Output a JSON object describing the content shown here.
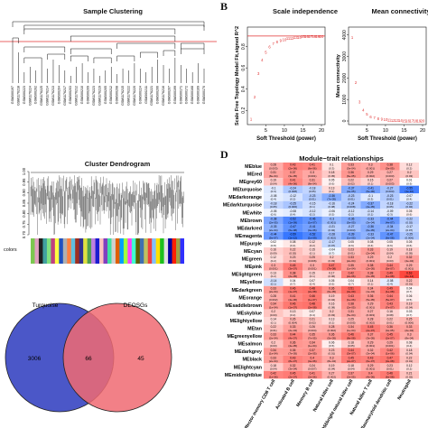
{
  "panelA": {
    "title": "Sample Clustering",
    "sample_labels": [
      "GSM300197",
      "GSM1176218",
      "GSM300223",
      "GSM1176224",
      "GSM300202",
      "GSM1176225",
      "GSM1176214",
      "GSM1176213",
      "GSM300204",
      "GSM1176217",
      "GSM300203",
      "GSM1176212",
      "GSM300210",
      "GSM300209",
      "GSM1176223",
      "GSM1176219",
      "GSM300205",
      "GSM300212",
      "GSM300208",
      "GSM1176215",
      "GSM1176222",
      "GSM1176220",
      "GSM300224",
      "GSM300211",
      "GSM1176221",
      "GSM300206",
      "GSM1176216",
      "GSM300207",
      "GSM300199",
      "GSM300171",
      "GSM300172",
      "GSM300168",
      "GSM300169",
      "GSM300170"
    ],
    "cut_line_color": "#e03030"
  },
  "panelB": {
    "letter": "B",
    "left": {
      "title": "Scale independence",
      "ylabel": "Scale Free Topology Model Fit,signed R^2",
      "xlabel": "Soft Threshold (power)",
      "xticks": [
        "5",
        "10",
        "15",
        "20"
      ],
      "yticks": [
        "0.2",
        "0.4",
        "0.6",
        "0.8"
      ],
      "powers": [
        1,
        2,
        3,
        4,
        5,
        6,
        7,
        8,
        9,
        10,
        11,
        12,
        13,
        14,
        15,
        16,
        17,
        18,
        19,
        20
      ],
      "r2": [
        0.12,
        0.33,
        0.55,
        0.68,
        0.75,
        0.8,
        0.83,
        0.85,
        0.86,
        0.87,
        0.88,
        0.88,
        0.89,
        0.89,
        0.9,
        0.9,
        0.9,
        0.9,
        0.9,
        0.9
      ],
      "cutoff": 0.9
    },
    "right": {
      "title": "Mean connectivity",
      "ylabel": "Mean connectivity",
      "xlabel": "Soft Threshold (power)",
      "xticks": [
        "5",
        "10",
        "15",
        "20"
      ],
      "yticks": [
        "0",
        "1000",
        "2000",
        "3000",
        "4000"
      ],
      "powers": [
        1,
        2,
        3,
        4,
        5,
        6,
        7,
        8,
        9,
        10,
        11,
        12,
        13,
        14,
        15,
        16,
        17,
        18,
        19,
        20
      ],
      "connectivity": [
        3900,
        1800,
        900,
        520,
        330,
        220,
        160,
        120,
        95,
        75,
        60,
        50,
        42,
        36,
        31,
        27,
        24,
        21,
        19,
        17
      ]
    }
  },
  "panelC": {
    "title": "Cluster Dendrogram",
    "yticks": [
      "1.00",
      "0.95",
      "0.90",
      "0.85",
      "0.80",
      "0.75",
      "0.70"
    ],
    "colors_label": "colors",
    "color_bar": [
      "#7cc850",
      "#e0a0c0",
      "#202020",
      "#40a0a0",
      "#80e080",
      "#c04080",
      "#ffff40",
      "#2050c0",
      "#b0b0b0",
      "#ff8040",
      "#60c0e0",
      "#a03020",
      "#303090",
      "#e0e040",
      "#50a050",
      "#c080e0",
      "#1c1cd0",
      "#ffc0c0",
      "#8040c0",
      "#40e0a0",
      "#d0d0d0",
      "#e06000",
      "#00a0ff",
      "#a0ff40",
      "#ff40ff",
      "#40ffd0",
      "#606000",
      "#4070b0",
      "#c0c060",
      "#f04040",
      "#80c0ff",
      "#ffe000",
      "#1cc01c",
      "#e0e0e0",
      "#0000a0",
      "#ff2000",
      "#a0a040",
      "#3030ff"
    ]
  },
  "venn": {
    "left_label": "Turquoise",
    "right_label": "DEOSGs",
    "left_only": "3006",
    "both": "66",
    "right_only": "45",
    "left_color": "#4b57c8",
    "right_color": "#f06a72"
  },
  "panelD": {
    "letter": "D",
    "title": "Module−trait relationships",
    "modules": [
      "MEblue",
      "MEred",
      "MEgrey60",
      "MEturquoise",
      "MEdarkorange",
      "MEdarkturquoise",
      "MEwhite",
      "MEbrown",
      "MEdarkred",
      "MEmagenta",
      "MEpurple",
      "MEcyan",
      "MEgreen",
      "MEpink",
      "MElightgreen",
      "MEyellow",
      "MEdarkgreen",
      "MEorange",
      "MEsaddlebrown",
      "MEskyblue",
      "MElightyellow",
      "MEtan",
      "MEgreenyellow",
      "MEsalmon",
      "MEdarkgrey",
      "MEblack",
      "MElightcyan",
      "MEmidnightblue"
    ],
    "traits": [
      "Effector memory CD8 T cell",
      "Activated B cell",
      "Memory B cell",
      "Natural killer cell",
      "CD56bright natural killer cell",
      "Natural killer T cell",
      "Plasmacytoid dendritic cell",
      "Neutrophil"
    ],
    "values": [
      [
        0.28,
        0.43,
        0.41,
        0.1,
        0.33,
        0.3,
        0.38,
        0.12
      ],
      [
        0.31,
        0.37,
        0.3,
        0.18,
        0.36,
        0.29,
        0.27,
        0.2
      ],
      [
        0.19,
        0.41,
        0.31,
        0.05,
        0.22,
        0.15,
        0.27,
        0.01
      ],
      [
        -0.1,
        -0.24,
        -0.18,
        0.13,
        -0.37,
        -0.41,
        -0.27,
        -0.55
      ],
      [
        -0.08,
        -0.12,
        -0.23,
        -0.36,
        -0.23,
        -0.1,
        -0.23,
        -0.07
      ],
      [
        -0.18,
        -0.25,
        -0.15,
        -0.16,
        -0.24,
        -0.37,
        -0.18,
        -0.22
      ],
      [
        -0.05,
        -0.08,
        -0.12,
        -0.06,
        -0.12,
        -0.14,
        -0.09,
        0.05
      ],
      [
        -0.38,
        -0.52,
        -0.46,
        -0.3,
        -0.36,
        -0.33,
        -0.44,
        -0.22
      ],
      [
        -0.33,
        -0.47,
        -0.41,
        -0.21,
        -0.27,
        -0.36,
        -0.34,
        -0.17
      ],
      [
        -0.44,
        -0.59,
        -0.52,
        -0.28,
        -0.39,
        -0.33,
        -0.47,
        -0.25
      ],
      [
        0.02,
        0.08,
        0.12,
        -0.17,
        0.05,
        0.08,
        0.05,
        0.05
      ],
      [
        0.16,
        0.22,
        0.15,
        -0.04,
        0.23,
        0.33,
        0.19,
        0.18
      ],
      [
        0.12,
        0.23,
        0.25,
        0.2,
        0.33,
        0.29,
        0.2,
        0.32
      ],
      [
        0.3,
        0.45,
        0.3,
        0.47,
        0.35,
        0.38,
        0.44,
        0.29
      ],
      [
        0.13,
        0.38,
        0.15,
        0.17,
        0.42,
        0.38,
        0.49,
        0.63
      ],
      [
        -0.14,
        0.04,
        0.07,
        0.05,
        0.04,
        0.14,
        -0.08,
        0.22
      ],
      [
        0.33,
        0.46,
        0.48,
        0.36,
        0.51,
        0.34,
        0.49,
        0.04
      ],
      [
        0.28,
        0.41,
        0.46,
        0.19,
        0.43,
        0.36,
        0.44,
        0.06
      ],
      [
        0.34,
        0.46,
        0.48,
        0.16,
        0.38,
        0.29,
        0.43,
        0.19
      ],
      [
        0.2,
        0.13,
        0.07,
        0.2,
        0.31,
        0.27,
        0.16,
        0.03
      ],
      [
        0.14,
        0.26,
        0.21,
        0.13,
        0.25,
        0.28,
        0.22,
        0.25
      ],
      [
        0.22,
        0.33,
        0.26,
        0.28,
        0.34,
        0.45,
        0.36,
        0.33
      ],
      [
        0.33,
        0.44,
        0.35,
        0.36,
        0.46,
        0.37,
        0.45,
        0.3
      ],
      [
        0.2,
        0.36,
        0.34,
        0.06,
        0.18,
        0.29,
        0.29,
        0.08
      ],
      [
        0.34,
        0.35,
        0.37,
        0.23,
        0.44,
        0.32,
        0.42,
        0.18
      ],
      [
        0.33,
        0.43,
        0.4,
        0.3,
        0.45,
        0.43,
        0.47,
        0.22
      ],
      [
        0.18,
        0.32,
        0.24,
        0.19,
        0.18,
        0.29,
        0.23,
        0.12
      ],
      [
        0.42,
        0.45,
        0.41,
        0.27,
        0.37,
        0.4,
        0.46,
        0.21
      ]
    ],
    "pvalues": [
      [
        "(0.003)",
        "(2e-06)",
        "(6e-06)",
        "(0.3)",
        "(3e-04)",
        "(0.001)",
        "(3e-05)",
        "(0.2)"
      ],
      [
        "(8e-04)",
        "(3e-05)",
        "(0.001)",
        "(0.05)",
        "(6e-05)",
        "(0.002)",
        "(0.003)",
        "(0.03)"
      ],
      [
        "(0.04)",
        "(4e-06)",
        "(8e-04)",
        "(0.6)",
        "(0.02)",
        "(0.1)",
        "(0.003)",
        "(0.9)"
      ],
      [
        "(0.3)",
        "(0.008)",
        "(0.05)",
        "(0.2)",
        "(4e-05)",
        "(5e-06)",
        "(0.003)",
        "(1e-10)"
      ],
      [
        "(0.4)",
        "(0.2)",
        "(0.01)",
        "(7e-05)",
        "(0.01)",
        "(0.3)",
        "(0.01)",
        "(0.4)"
      ],
      [
        "(0.05)",
        "(0.006)",
        "(0.1)",
        "(0.08)",
        "(0.008)",
        "(4e-05)",
        "(0.05)",
        "(0.02)"
      ],
      [
        "(0.6)",
        "(0.4)",
        "(0.2)",
        "(0.5)",
        "(0.2)",
        "(0.1)",
        "(0.3)",
        "(0.6)"
      ],
      [
        "(2e-05)",
        "(1e-09)",
        "(1e-07)",
        "(0.001)",
        "(5e-05)",
        "(3e-04)",
        "(4e-07)",
        "(0.02)"
      ],
      [
        "(2e-04)",
        "(6e-08)",
        "(4e-06)",
        "(0.02)",
        "(0.003)",
        "(6e-05)",
        "(2e-04)",
        "(0.07)"
      ],
      [
        "(5e-07)",
        "(1e-12)",
        "(1e-09)",
        "(0.002)",
        "(1e-05)",
        "(2e-04)",
        "(6e-08)",
        "(0.006)"
      ],
      [
        "(0.8)",
        "(0.4)",
        "(0.2)",
        "(0.07)",
        "(0.6)",
        "(0.4)",
        "(0.6)",
        "(0.6)"
      ],
      [
        "(0.09)",
        "(0.02)",
        "(0.1)",
        "(0.7)",
        "(0.01)",
        "(2e-04)",
        "(0.04)",
        "(0.05)"
      ],
      [
        "(0.2)",
        "(0.01)",
        "(0.006)",
        "(0.03)",
        "(2e-04)",
        "(0.001)",
        "(0.03)",
        "(4e-04)"
      ],
      [
        "(0.001)",
        "(3e-07)",
        "(0.001)",
        "(7e-08)",
        "(1e-04)",
        "(2e-05)",
        "(5e-07)",
        "(0.001)"
      ],
      [
        "(0.2)",
        "(2e-05)",
        "(0.1)",
        "(0.06)",
        "(2e-06)",
        "(2e-05)",
        "(1e-08)",
        "(2e-14)"
      ],
      [
        "(0.1)",
        "(0.7)",
        "(0.4)",
        "(0.6)",
        "(0.7)",
        "(0.1)",
        "(0.4)",
        "(0.01)"
      ],
      [
        "(2e-04)",
        "(1e-07)",
        "(2e-08)",
        "(6e-05)",
        "(3e-09)",
        "(1e-04)",
        "(1e-08)",
        "(0.7)"
      ],
      [
        "(0.002)",
        "(4e-06)",
        "(1e-07)",
        "(0.04)",
        "(1e-06)",
        "(5e-05)",
        "(5e-07)",
        "(0.5)"
      ],
      [
        "(1e-04)",
        "(1e-07)",
        "(2e-08)",
        "(0.08)",
        "(2e-05)",
        "(0.001)",
        "(7e-07)",
        "(0.04)"
      ],
      [
        "(0.03)",
        "(0.2)",
        "(0.4)",
        "(0.03)",
        "(5e-04)",
        "(0.003)",
        "(0.08)",
        "(0.7)"
      ],
      [
        "(0.1)",
        "(0.004)",
        "(0.02)",
        "(0.2)",
        "(0.005)",
        "(0.002)",
        "(0.01)",
        "(0.006)"
      ],
      [
        "(0.01)",
        "(2e-04)",
        "(0.004)",
        "(0.002)",
        "(1e-04)",
        "(2e-07)",
        "(4e-05)",
        "(2e-04)"
      ],
      [
        "(2e-04)",
        "(4e-07)",
        "(7e-05)",
        "(5e-05)",
        "(8e-08)",
        "(3e-05)",
        "(2e-07)",
        "(8e-04)"
      ],
      [
        "(0.03)",
        "(4e-05)",
        "(1e-04)",
        "(0.5)",
        "(0.05)",
        "(0.001)",
        "(0.001)",
        "(0.4)"
      ],
      [
        "(1e-04)",
        "(7e-05)",
        "(2e-05)",
        "(0.01)",
        "(3e-07)",
        "(3e-04)",
        "(1e-06)",
        "(0.04)"
      ],
      [
        "(2e-04)",
        "(8e-07)",
        "(4e-06)",
        "(8e-04)",
        "(2e-07)",
        "(6e-07)",
        "(3e-08)",
        "(0.01)"
      ],
      [
        "(0.04)",
        "(3e-04)",
        "(0.007)",
        "(0.04)",
        "(0.04)",
        "(0.001)",
        "(0.01)",
        "(0.2)"
      ],
      [
        "(1e-06)",
        "(2e-07)",
        "(2e-06)",
        "(0.002)",
        "(2e-05)",
        "(4e-06)",
        "(6e-08)",
        "(0.02)"
      ]
    ]
  },
  "panel_c_upper_ytick": "1"
}
